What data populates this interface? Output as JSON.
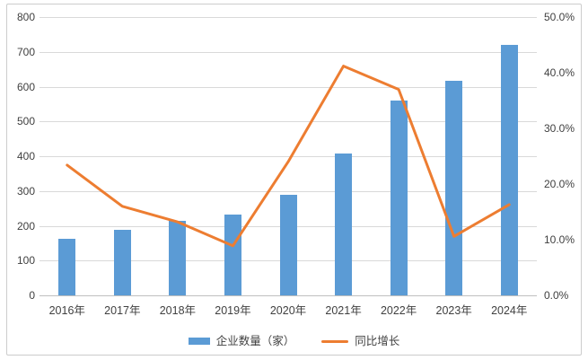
{
  "colors": {
    "bar": "#5b9bd5",
    "line": "#ed7d31",
    "grid": "#d9d9d9",
    "baseline": "#bfbfbf",
    "axis_text": "#404040",
    "frame_border": "#cccccc",
    "background": "#ffffff"
  },
  "chart_data": {
    "type": "bar+line",
    "categories": [
      "2016年",
      "2017年",
      "2018年",
      "2019年",
      "2020年",
      "2021年",
      "2022年",
      "2023年",
      "2024年"
    ],
    "series": [
      {
        "name": "企业数量（家）",
        "type": "bar",
        "axis": "left",
        "values": [
          163,
          189,
          214,
          233,
          289,
          408,
          559,
          618,
          719
        ]
      },
      {
        "name": "同比增长",
        "type": "line",
        "axis": "right",
        "values": [
          23.4,
          16.0,
          13.2,
          8.9,
          24.0,
          41.2,
          37.0,
          10.6,
          16.3
        ]
      }
    ],
    "left_axis": {
      "min": 0,
      "max": 800,
      "step": 100,
      "ticks": [
        "0",
        "100",
        "200",
        "300",
        "400",
        "500",
        "600",
        "700",
        "800"
      ]
    },
    "right_axis": {
      "min": 0,
      "max": 50,
      "step": 10,
      "ticks": [
        "0.0%",
        "10.0%",
        "20.0%",
        "30.0%",
        "40.0%",
        "50.0%"
      ]
    },
    "grid": true,
    "legend_position": "bottom",
    "title": ""
  }
}
